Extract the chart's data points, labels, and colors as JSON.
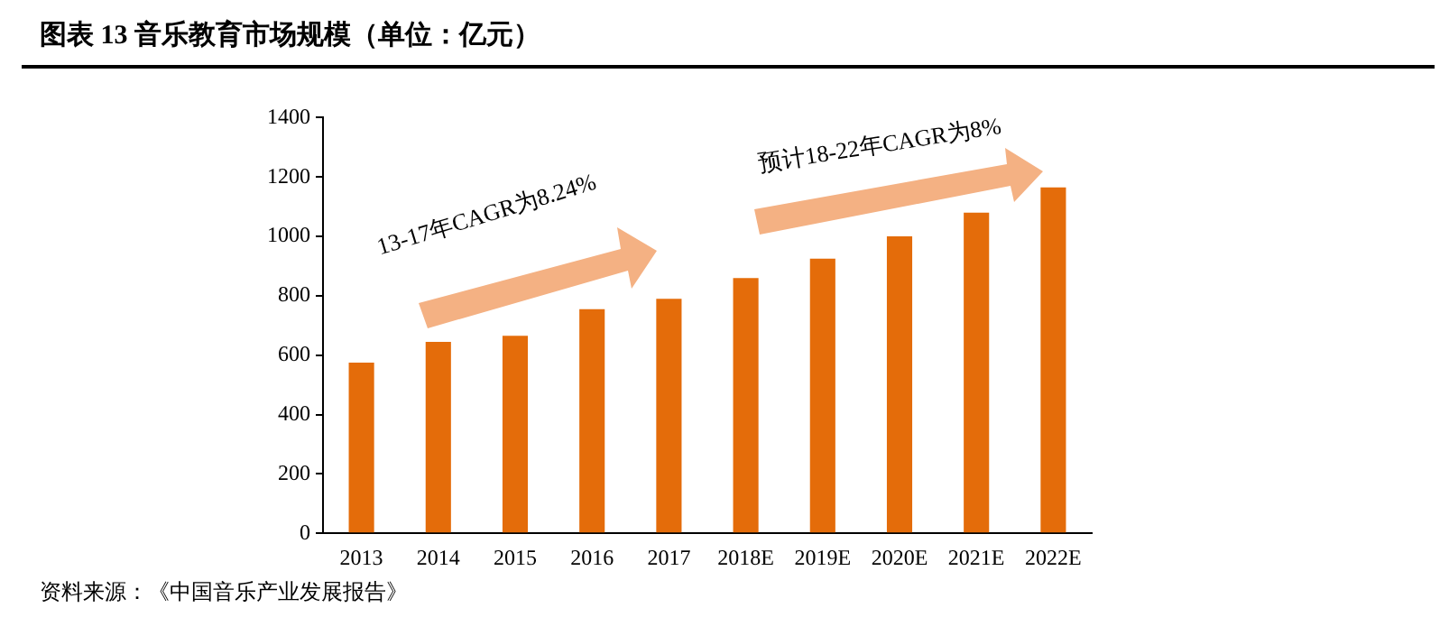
{
  "chart_data": {
    "type": "bar",
    "title": "图表 13 音乐教育市场规模（单位：亿元）",
    "categories": [
      "2013",
      "2014",
      "2015",
      "2016",
      "2017",
      "2018E",
      "2019E",
      "2020E",
      "2021E",
      "2022E"
    ],
    "values": [
      575,
      645,
      665,
      755,
      790,
      860,
      925,
      1000,
      1080,
      1165
    ],
    "color": "#e46c0a",
    "ylim": [
      0,
      1400
    ],
    "yticks": [
      0,
      200,
      400,
      600,
      800,
      1000,
      1200,
      1400
    ],
    "grid": false,
    "legend": false,
    "annotations": [
      "13-17年CAGR为8.24%",
      "预计18-22年CAGR为8%",
      "资料来源：《中国音乐产业发展报告》"
    ]
  }
}
